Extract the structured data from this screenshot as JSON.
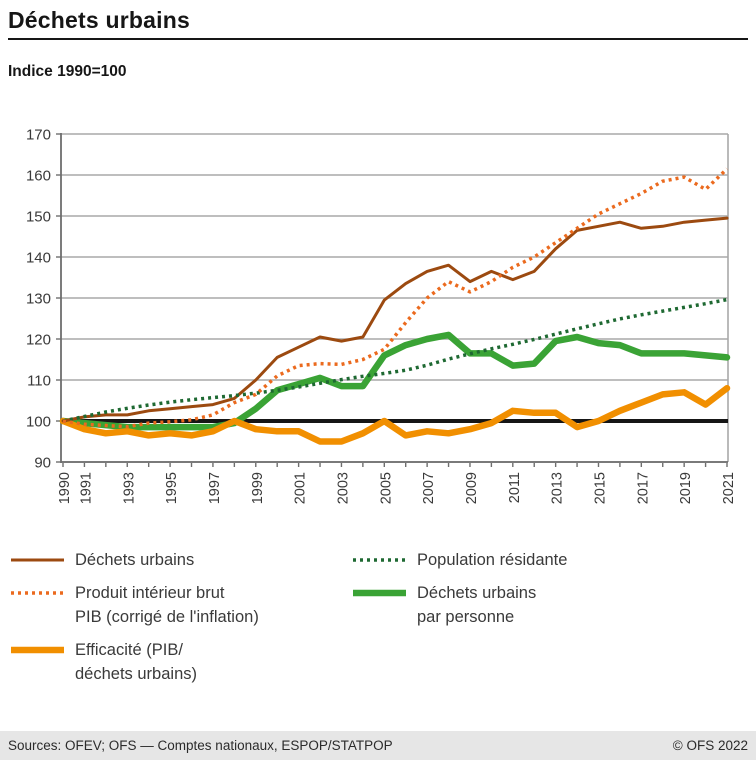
{
  "header": {
    "title": "Déchets urbains",
    "subtitle": "Indice 1990=100"
  },
  "chart_data": {
    "type": "line",
    "title": "Déchets urbains",
    "subtitle_unit": "Indice 1990=100",
    "x": [
      1990,
      1991,
      1992,
      1993,
      1994,
      1995,
      1996,
      1997,
      1998,
      1999,
      2000,
      2001,
      2002,
      2003,
      2004,
      2005,
      2006,
      2007,
      2008,
      2009,
      2010,
      2011,
      2012,
      2013,
      2014,
      2015,
      2016,
      2017,
      2018,
      2019,
      2020,
      2021
    ],
    "x_tick_labels": [
      "1990",
      "1991",
      "1993",
      "1995",
      "1997",
      "1999",
      "2001",
      "2003",
      "2005",
      "2007",
      "2009",
      "2011",
      "2013",
      "2015",
      "2017",
      "2019",
      "2021"
    ],
    "ylim": [
      90,
      170
    ],
    "yticks": [
      90,
      100,
      110,
      120,
      130,
      140,
      150,
      160,
      170
    ],
    "baseline_value": 100,
    "grid": true,
    "legend_position": "bottom",
    "series": [
      {
        "name": "Déchets urbains",
        "color": "#9c4a10",
        "style": "solid-thin",
        "values": [
          100,
          101,
          101.5,
          101.5,
          102.5,
          103,
          103.5,
          104,
          105.5,
          110,
          115.5,
          118,
          120.5,
          119.5,
          120.5,
          129.5,
          133.5,
          136.5,
          138,
          134,
          136.5,
          134.5,
          136.5,
          142,
          146.5,
          147.5,
          148.5,
          147,
          147.5,
          148.5,
          149,
          149.5
        ]
      },
      {
        "name": "Produit intérieur brut PIB (corrigé de l'inflation)",
        "color": "#eb6a1e",
        "style": "dotted",
        "values": [
          100,
          99.2,
          98.9,
          98.6,
          99.5,
          99.8,
          100.3,
          101.5,
          104.5,
          106.5,
          111,
          113.5,
          114,
          113.8,
          115,
          117.5,
          124,
          130,
          134,
          131.5,
          134,
          137.5,
          140,
          143.5,
          147,
          150.5,
          153,
          155.5,
          158.5,
          159.5,
          156.5,
          161.5
        ]
      },
      {
        "name": "Efficacité (PIB/déchets urbains)",
        "color": "#f18f00",
        "style": "solid-thick",
        "values": [
          100,
          98,
          97,
          97.5,
          96.5,
          97,
          96.5,
          97.5,
          100,
          98,
          97.5,
          97.5,
          95,
          95,
          97,
          100,
          96.5,
          97.5,
          97,
          98,
          99.5,
          102.5,
          102,
          102,
          98.5,
          100,
          102.5,
          104.5,
          106.5,
          107,
          104,
          108
        ]
      },
      {
        "name": "Population résidante",
        "color": "#1e6932",
        "style": "dotted",
        "values": [
          100,
          101.1,
          102.2,
          103.1,
          103.9,
          104.6,
          105.2,
          105.7,
          106.2,
          106.8,
          107.5,
          108.3,
          109.2,
          110.1,
          110.9,
          111.6,
          112.4,
          113.6,
          115.1,
          116.4,
          117.6,
          118.7,
          119.9,
          121.2,
          122.5,
          123.7,
          124.9,
          125.9,
          126.8,
          127.7,
          128.6,
          129.6
        ]
      },
      {
        "name": "Déchets urbains par personne",
        "color": "#3aa335",
        "style": "solid-thick",
        "values": [
          100,
          99.5,
          99,
          98.5,
          98.5,
          98.5,
          98.5,
          98.5,
          99.5,
          103,
          107.5,
          109,
          110.5,
          108.5,
          108.5,
          116,
          118.5,
          120,
          121,
          116.5,
          116.5,
          113.5,
          114,
          119.5,
          120.5,
          119,
          118.5,
          116.5,
          116.5,
          116.5,
          116,
          115.5
        ]
      }
    ]
  },
  "legend": {
    "columns": [
      {
        "items": [
          {
            "series": 0,
            "lines": "Déchets urbains"
          },
          {
            "series": 1,
            "lines": "Produit intérieur brut\nPIB (corrigé de l'inflation)"
          },
          {
            "series": 2,
            "lines": "Efficacité (PIB/\ndéchets urbains)"
          }
        ]
      },
      {
        "items": [
          {
            "series": 3,
            "lines": "Population résidante"
          },
          {
            "series": 4,
            "lines": "Déchets urbains\npar personne"
          }
        ]
      }
    ]
  },
  "footer": {
    "sources": "Sources: OFEV; OFS — Comptes nationaux, ESPOP/STATPOP",
    "copyright": "© OFS 2022"
  },
  "colors": {
    "baseline": "#161616",
    "gridline": "#a8a8a8",
    "axis": "#6e6e6e",
    "tick_label": "#3a3a3a",
    "footer_bg": "#e6e6e6"
  }
}
